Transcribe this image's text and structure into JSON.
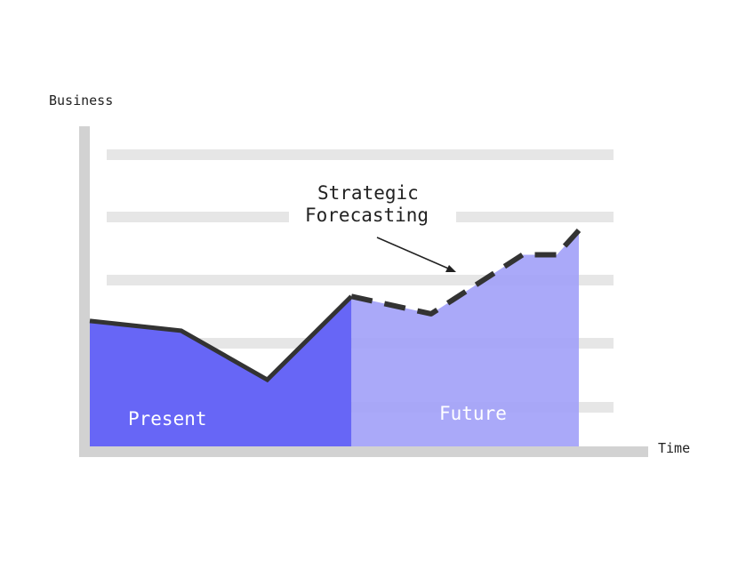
{
  "chart_data": {
    "type": "area",
    "title": "",
    "ylabel": "Business",
    "xlabel": "Time",
    "grid": true,
    "xlim": [
      0,
      10
    ],
    "ylim": [
      0,
      10
    ],
    "regions": [
      {
        "name": "Present",
        "label": "Present",
        "x_range": [
          0,
          5.35
        ],
        "color": "#6766f6"
      },
      {
        "name": "Future",
        "label": "Future",
        "x_range": [
          5.35,
          10
        ],
        "color": "#a3a2f8"
      }
    ],
    "series": [
      {
        "name": "Present",
        "style": "solid",
        "x": [
          0,
          1.87,
          3.63,
          5.35
        ],
        "y": [
          4.25,
          3.92,
          2.26,
          5.08
        ]
      },
      {
        "name": "Strategic Forecasting",
        "style": "dashed",
        "x": [
          5.35,
          6.98,
          8.85,
          9.55,
          10
        ],
        "y": [
          5.08,
          4.49,
          6.49,
          6.49,
          7.32
        ]
      }
    ],
    "annotations": [
      {
        "line1": "Strategic",
        "line2": "Forecasting"
      }
    ]
  }
}
